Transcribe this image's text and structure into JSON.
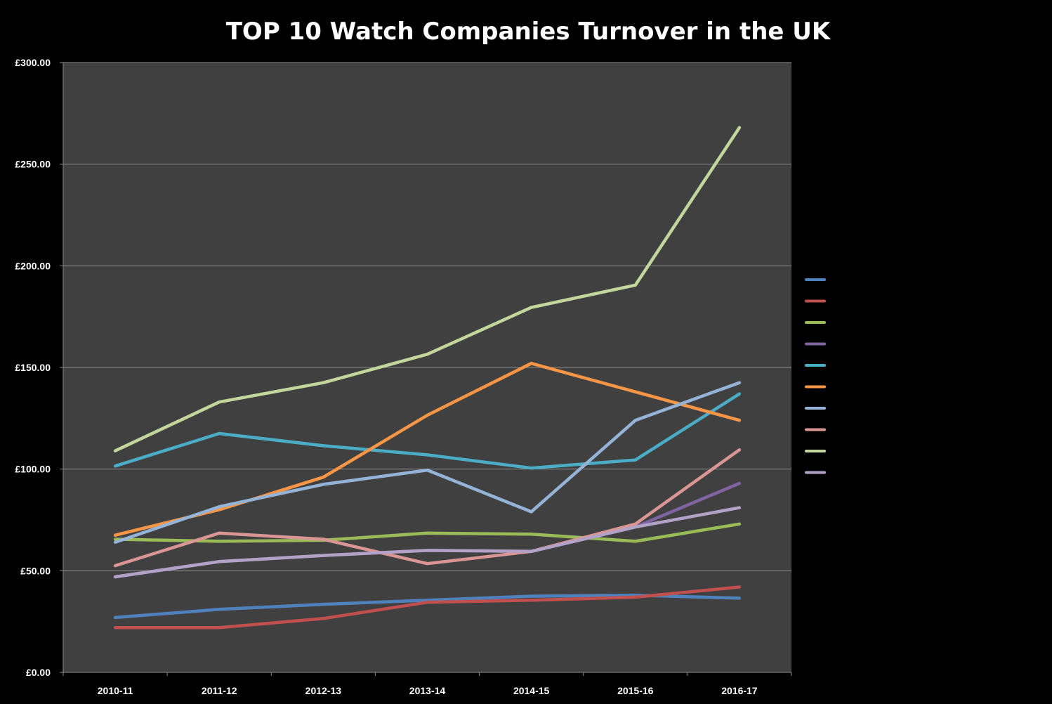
{
  "chart_data": {
    "type": "line",
    "title": "TOP 10 Watch Companies Turnover in the UK",
    "xlabel": "",
    "ylabel": "",
    "categories": [
      "2010-11",
      "2011-12",
      "2012-13",
      "2013-14",
      "2014-15",
      "2015-16",
      "2016-17"
    ],
    "ylim": [
      0,
      300
    ],
    "yticks": [
      "£0.00",
      "£50.00",
      "£100.00",
      "£150.00",
      "£200.00",
      "£250.00",
      "£300.00"
    ],
    "grid": "horizontal",
    "legend_position": "right",
    "plot_background": "#404040",
    "page_background": "#000000",
    "series": [
      {
        "color": "#4f81bd",
        "values": [
          27,
          31,
          33.5,
          35.5,
          37.5,
          38,
          36.5
        ]
      },
      {
        "color": "#c0504d",
        "values": [
          22,
          22,
          26.5,
          34.5,
          35.5,
          37,
          42
        ]
      },
      {
        "color": "#9bbb59",
        "values": [
          65.5,
          64.5,
          65,
          68.5,
          68,
          64.5,
          73
        ]
      },
      {
        "color": "#8064a2",
        "values": [
          47,
          54.5,
          57.5,
          60,
          59.5,
          71.5,
          93
        ]
      },
      {
        "color": "#4bacc6",
        "values": [
          101.5,
          117.5,
          111.5,
          107,
          100.5,
          104.5,
          137
        ]
      },
      {
        "color": "#f79646",
        "values": [
          67.5,
          80,
          96,
          126.5,
          152,
          138,
          124
        ]
      },
      {
        "color": "#95b3d7",
        "values": [
          64,
          81.5,
          92.5,
          99.5,
          79,
          124,
          142.5
        ]
      },
      {
        "color": "#d99694",
        "values": [
          52.5,
          68.5,
          65.5,
          53.5,
          59.5,
          73,
          109.5
        ]
      },
      {
        "color": "#c3d69b",
        "values": [
          109,
          133,
          142.5,
          156.5,
          179.5,
          190.5,
          268
        ]
      },
      {
        "color": "#b3a2c7",
        "values": [
          47,
          54.5,
          57.5,
          60,
          59.5,
          71.5,
          81
        ]
      }
    ]
  }
}
